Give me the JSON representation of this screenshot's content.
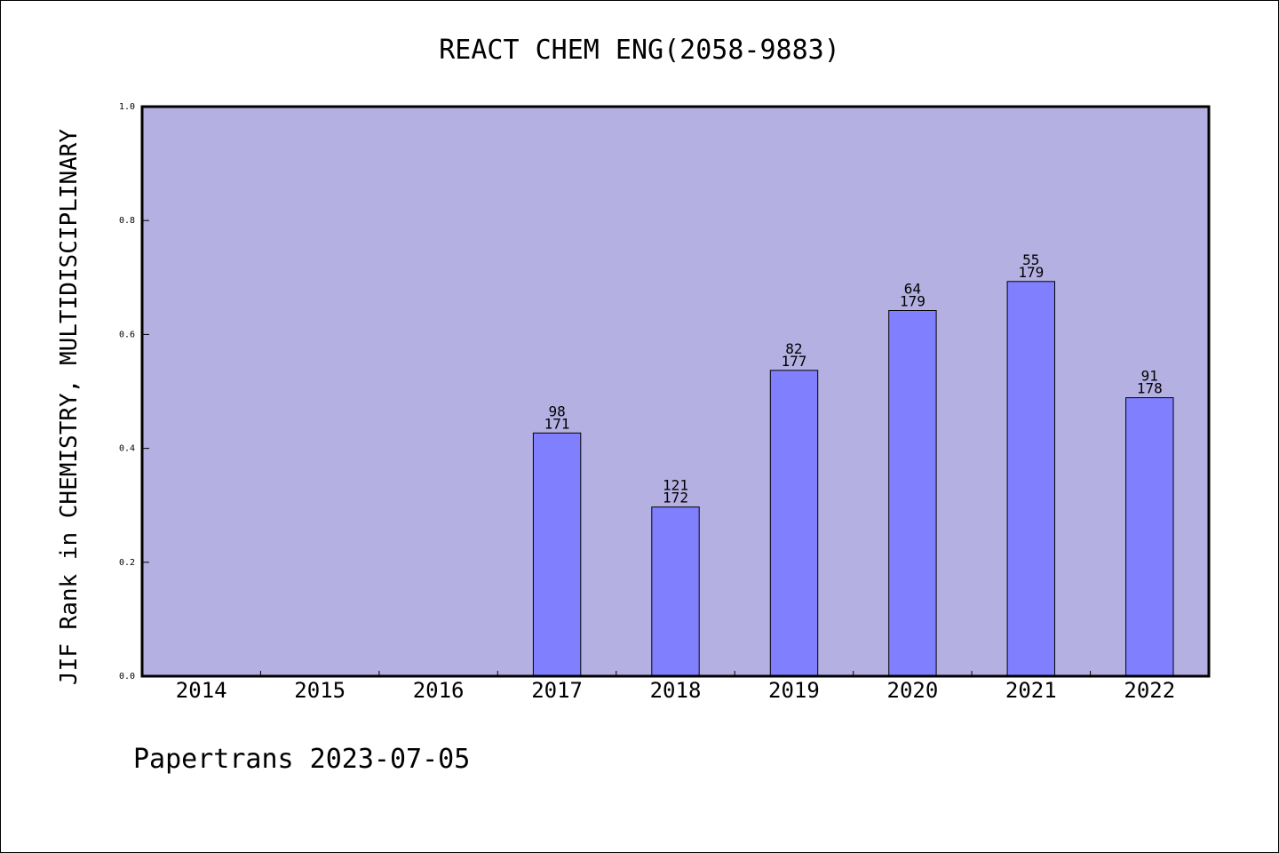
{
  "chart_data": {
    "type": "bar",
    "title": "REACT CHEM ENG(2058-9883)",
    "xlabel": "",
    "ylabel": "JIF Rank in CHEMISTRY, MULTIDISCIPLINARY",
    "ylim": [
      0,
      1.0
    ],
    "yticks": [
      "0.0",
      "0.2",
      "0.4",
      "0.6",
      "0.8",
      "1.0"
    ],
    "categories": [
      "2014",
      "2015",
      "2016",
      "2017",
      "2018",
      "2019",
      "2020",
      "2021",
      "2022"
    ],
    "values": [
      null,
      null,
      null,
      0.427,
      0.297,
      0.537,
      0.642,
      0.693,
      0.489
    ],
    "rank_labels": [
      "",
      "",
      "",
      "98",
      "121",
      "82",
      "64",
      "55",
      "91"
    ],
    "total_labels": [
      "",
      "",
      "",
      "171",
      "172",
      "177",
      "179",
      "179",
      "178"
    ],
    "grid": false,
    "legend": "none",
    "colors": {
      "plot_background": "#b5b0e2",
      "bar_fill": "#8080ff",
      "bar_stroke": "#000000"
    }
  },
  "footer": {
    "text": "Papertrans 2023-07-05"
  }
}
